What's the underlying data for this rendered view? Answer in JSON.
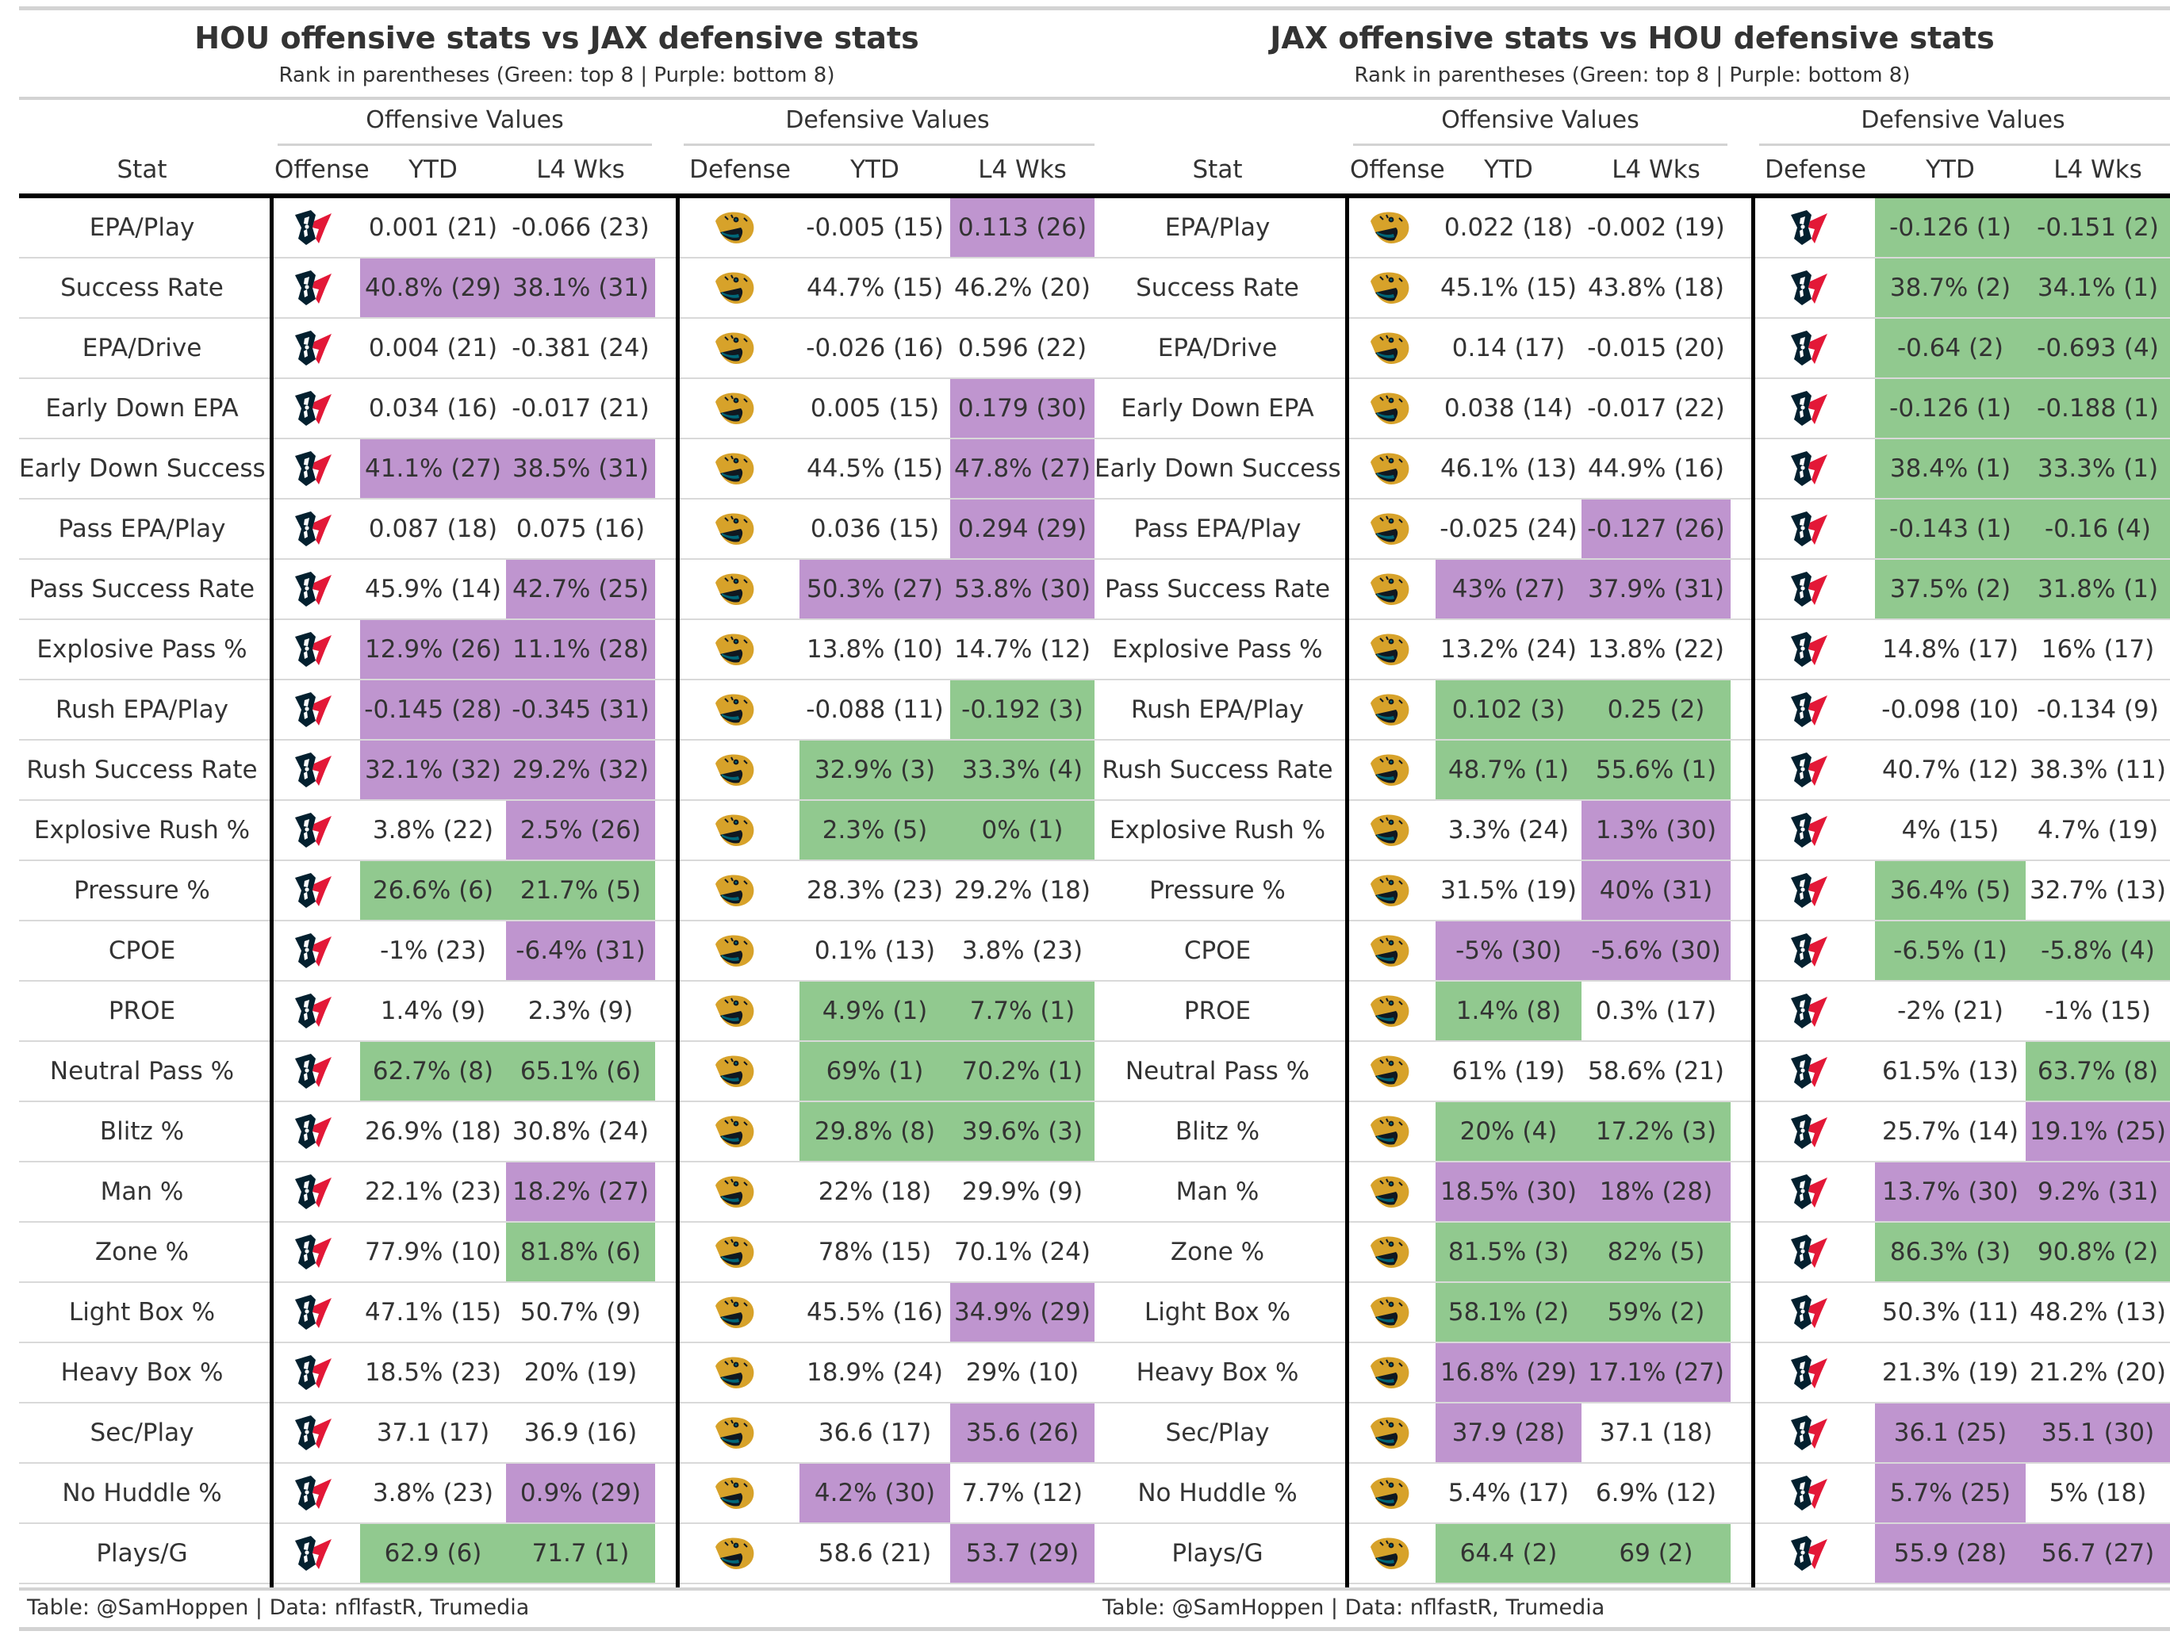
{
  "colors": {
    "green": "#91c98f",
    "purple": "#bf95cf"
  },
  "column_labels": {
    "stat": "Stat",
    "offense": "Offense",
    "defense": "Defense",
    "ytd": "YTD",
    "l4": "L4 Wks"
  },
  "spanners": {
    "offensive": "Offensive Values",
    "defensive": "Defensive Values"
  },
  "panels": [
    {
      "title": "HOU offensive stats vs JAX defensive stats",
      "subtitle": "Rank in parentheses (Green: top 8 | Purple: bottom 8)",
      "footer": "Table: @SamHoppen | Data: nflfastR, Trumedia",
      "offense_logo": "texans-logo-icon",
      "defense_logo": "jaguars-logo-icon",
      "rows": [
        {
          "stat": "EPA/Play",
          "off_ytd": "0.001 (21)",
          "off_l4": "-0.066 (23)",
          "def_ytd": "-0.005 (15)",
          "def_l4": "0.113 (26)",
          "c": [
            "",
            "",
            "",
            "p"
          ]
        },
        {
          "stat": "Success Rate",
          "off_ytd": "40.8% (29)",
          "off_l4": "38.1% (31)",
          "def_ytd": "44.7% (15)",
          "def_l4": "46.2% (20)",
          "c": [
            "p",
            "p",
            "",
            ""
          ]
        },
        {
          "stat": "EPA/Drive",
          "off_ytd": "0.004 (21)",
          "off_l4": "-0.381 (24)",
          "def_ytd": "-0.026 (16)",
          "def_l4": "0.596 (22)",
          "c": [
            "",
            "",
            "",
            ""
          ]
        },
        {
          "stat": "Early Down EPA",
          "off_ytd": "0.034 (16)",
          "off_l4": "-0.017 (21)",
          "def_ytd": "0.005 (15)",
          "def_l4": "0.179 (30)",
          "c": [
            "",
            "",
            "",
            "p"
          ]
        },
        {
          "stat": "Early Down Success",
          "off_ytd": "41.1% (27)",
          "off_l4": "38.5% (31)",
          "def_ytd": "44.5% (15)",
          "def_l4": "47.8% (27)",
          "c": [
            "p",
            "p",
            "",
            "p"
          ]
        },
        {
          "stat": "Pass EPA/Play",
          "off_ytd": "0.087 (18)",
          "off_l4": "0.075 (16)",
          "def_ytd": "0.036 (15)",
          "def_l4": "0.294 (29)",
          "c": [
            "",
            "",
            "",
            "p"
          ]
        },
        {
          "stat": "Pass Success Rate",
          "off_ytd": "45.9% (14)",
          "off_l4": "42.7% (25)",
          "def_ytd": "50.3% (27)",
          "def_l4": "53.8% (30)",
          "c": [
            "",
            "p",
            "p",
            "p"
          ]
        },
        {
          "stat": "Explosive Pass %",
          "off_ytd": "12.9% (26)",
          "off_l4": "11.1% (28)",
          "def_ytd": "13.8% (10)",
          "def_l4": "14.7% (12)",
          "c": [
            "p",
            "p",
            "",
            ""
          ]
        },
        {
          "stat": "Rush EPA/Play",
          "off_ytd": "-0.145 (28)",
          "off_l4": "-0.345 (31)",
          "def_ytd": "-0.088 (11)",
          "def_l4": "-0.192 (3)",
          "c": [
            "p",
            "p",
            "",
            "g"
          ]
        },
        {
          "stat": "Rush Success Rate",
          "off_ytd": "32.1% (32)",
          "off_l4": "29.2% (32)",
          "def_ytd": "32.9% (3)",
          "def_l4": "33.3% (4)",
          "c": [
            "p",
            "p",
            "g",
            "g"
          ]
        },
        {
          "stat": "Explosive Rush %",
          "off_ytd": "3.8% (22)",
          "off_l4": "2.5% (26)",
          "def_ytd": "2.3% (5)",
          "def_l4": "0% (1)",
          "c": [
            "",
            "p",
            "g",
            "g"
          ]
        },
        {
          "stat": "Pressure %",
          "off_ytd": "26.6% (6)",
          "off_l4": "21.7% (5)",
          "def_ytd": "28.3% (23)",
          "def_l4": "29.2% (18)",
          "c": [
            "g",
            "g",
            "",
            ""
          ]
        },
        {
          "stat": "CPOE",
          "off_ytd": "-1% (23)",
          "off_l4": "-6.4% (31)",
          "def_ytd": "0.1% (13)",
          "def_l4": "3.8% (23)",
          "c": [
            "",
            "p",
            "",
            ""
          ]
        },
        {
          "stat": "PROE",
          "off_ytd": "1.4% (9)",
          "off_l4": "2.3% (9)",
          "def_ytd": "4.9% (1)",
          "def_l4": "7.7% (1)",
          "c": [
            "",
            "",
            "g",
            "g"
          ]
        },
        {
          "stat": "Neutral Pass %",
          "off_ytd": "62.7% (8)",
          "off_l4": "65.1% (6)",
          "def_ytd": "69% (1)",
          "def_l4": "70.2% (1)",
          "c": [
            "g",
            "g",
            "g",
            "g"
          ]
        },
        {
          "stat": "Blitz %",
          "off_ytd": "26.9% (18)",
          "off_l4": "30.8% (24)",
          "def_ytd": "29.8% (8)",
          "def_l4": "39.6% (3)",
          "c": [
            "",
            "",
            "g",
            "g"
          ]
        },
        {
          "stat": "Man %",
          "off_ytd": "22.1% (23)",
          "off_l4": "18.2% (27)",
          "def_ytd": "22% (18)",
          "def_l4": "29.9% (9)",
          "c": [
            "",
            "p",
            "",
            ""
          ]
        },
        {
          "stat": "Zone %",
          "off_ytd": "77.9% (10)",
          "off_l4": "81.8% (6)",
          "def_ytd": "78% (15)",
          "def_l4": "70.1% (24)",
          "c": [
            "",
            "g",
            "",
            ""
          ]
        },
        {
          "stat": "Light Box %",
          "off_ytd": "47.1% (15)",
          "off_l4": "50.7% (9)",
          "def_ytd": "45.5% (16)",
          "def_l4": "34.9% (29)",
          "c": [
            "",
            "",
            "",
            "p"
          ]
        },
        {
          "stat": "Heavy Box %",
          "off_ytd": "18.5% (23)",
          "off_l4": "20% (19)",
          "def_ytd": "18.9% (24)",
          "def_l4": "29% (10)",
          "c": [
            "",
            "",
            "",
            ""
          ]
        },
        {
          "stat": "Sec/Play",
          "off_ytd": "37.1 (17)",
          "off_l4": "36.9 (16)",
          "def_ytd": "36.6 (17)",
          "def_l4": "35.6 (26)",
          "c": [
            "",
            "",
            "",
            "p"
          ]
        },
        {
          "stat": "No Huddle %",
          "off_ytd": "3.8% (23)",
          "off_l4": "0.9% (29)",
          "def_ytd": "4.2% (30)",
          "def_l4": "7.7% (12)",
          "c": [
            "",
            "p",
            "p",
            ""
          ]
        },
        {
          "stat": "Plays/G",
          "off_ytd": "62.9 (6)",
          "off_l4": "71.7 (1)",
          "def_ytd": "58.6 (21)",
          "def_l4": "53.7 (29)",
          "c": [
            "g",
            "g",
            "",
            "p"
          ]
        }
      ]
    },
    {
      "title": "JAX offensive stats vs HOU defensive stats",
      "subtitle": "Rank in parentheses (Green: top 8 | Purple: bottom 8)",
      "footer": "Table: @SamHoppen | Data: nflfastR, Trumedia",
      "offense_logo": "jaguars-logo-icon",
      "defense_logo": "texans-logo-icon",
      "rows": [
        {
          "stat": "EPA/Play",
          "off_ytd": "0.022 (18)",
          "off_l4": "-0.002 (19)",
          "def_ytd": "-0.126 (1)",
          "def_l4": "-0.151 (2)",
          "c": [
            "",
            "",
            "g",
            "g"
          ]
        },
        {
          "stat": "Success Rate",
          "off_ytd": "45.1% (15)",
          "off_l4": "43.8% (18)",
          "def_ytd": "38.7% (2)",
          "def_l4": "34.1% (1)",
          "c": [
            "",
            "",
            "g",
            "g"
          ]
        },
        {
          "stat": "EPA/Drive",
          "off_ytd": "0.14 (17)",
          "off_l4": "-0.015 (20)",
          "def_ytd": "-0.64 (2)",
          "def_l4": "-0.693 (4)",
          "c": [
            "",
            "",
            "g",
            "g"
          ]
        },
        {
          "stat": "Early Down EPA",
          "off_ytd": "0.038 (14)",
          "off_l4": "-0.017 (22)",
          "def_ytd": "-0.126 (1)",
          "def_l4": "-0.188 (1)",
          "c": [
            "",
            "",
            "g",
            "g"
          ]
        },
        {
          "stat": "Early Down Success",
          "off_ytd": "46.1% (13)",
          "off_l4": "44.9% (16)",
          "def_ytd": "38.4% (1)",
          "def_l4": "33.3% (1)",
          "c": [
            "",
            "",
            "g",
            "g"
          ]
        },
        {
          "stat": "Pass EPA/Play",
          "off_ytd": "-0.025 (24)",
          "off_l4": "-0.127 (26)",
          "def_ytd": "-0.143 (1)",
          "def_l4": "-0.16 (4)",
          "c": [
            "",
            "p",
            "g",
            "g"
          ]
        },
        {
          "stat": "Pass Success Rate",
          "off_ytd": "43% (27)",
          "off_l4": "37.9% (31)",
          "def_ytd": "37.5% (2)",
          "def_l4": "31.8% (1)",
          "c": [
            "p",
            "p",
            "g",
            "g"
          ]
        },
        {
          "stat": "Explosive Pass %",
          "off_ytd": "13.2% (24)",
          "off_l4": "13.8% (22)",
          "def_ytd": "14.8% (17)",
          "def_l4": "16% (17)",
          "c": [
            "",
            "",
            "",
            ""
          ]
        },
        {
          "stat": "Rush EPA/Play",
          "off_ytd": "0.102 (3)",
          "off_l4": "0.25 (2)",
          "def_ytd": "-0.098 (10)",
          "def_l4": "-0.134 (9)",
          "c": [
            "g",
            "g",
            "",
            ""
          ]
        },
        {
          "stat": "Rush Success Rate",
          "off_ytd": "48.7% (1)",
          "off_l4": "55.6% (1)",
          "def_ytd": "40.7% (12)",
          "def_l4": "38.3% (11)",
          "c": [
            "g",
            "g",
            "",
            ""
          ]
        },
        {
          "stat": "Explosive Rush %",
          "off_ytd": "3.3% (24)",
          "off_l4": "1.3% (30)",
          "def_ytd": "4% (15)",
          "def_l4": "4.7% (19)",
          "c": [
            "",
            "p",
            "",
            ""
          ]
        },
        {
          "stat": "Pressure %",
          "off_ytd": "31.5% (19)",
          "off_l4": "40% (31)",
          "def_ytd": "36.4% (5)",
          "def_l4": "32.7% (13)",
          "c": [
            "",
            "p",
            "g",
            ""
          ]
        },
        {
          "stat": "CPOE",
          "off_ytd": "-5% (30)",
          "off_l4": "-5.6% (30)",
          "def_ytd": "-6.5% (1)",
          "def_l4": "-5.8% (4)",
          "c": [
            "p",
            "p",
            "g",
            "g"
          ]
        },
        {
          "stat": "PROE",
          "off_ytd": "1.4% (8)",
          "off_l4": "0.3% (17)",
          "def_ytd": "-2% (21)",
          "def_l4": "-1% (15)",
          "c": [
            "g",
            "",
            "",
            ""
          ]
        },
        {
          "stat": "Neutral Pass %",
          "off_ytd": "61% (19)",
          "off_l4": "58.6% (21)",
          "def_ytd": "61.5% (13)",
          "def_l4": "63.7% (8)",
          "c": [
            "",
            "",
            "",
            "g"
          ]
        },
        {
          "stat": "Blitz %",
          "off_ytd": "20% (4)",
          "off_l4": "17.2% (3)",
          "def_ytd": "25.7% (14)",
          "def_l4": "19.1% (25)",
          "c": [
            "g",
            "g",
            "",
            "p"
          ]
        },
        {
          "stat": "Man %",
          "off_ytd": "18.5% (30)",
          "off_l4": "18% (28)",
          "def_ytd": "13.7% (30)",
          "def_l4": "9.2% (31)",
          "c": [
            "p",
            "p",
            "p",
            "p"
          ]
        },
        {
          "stat": "Zone %",
          "off_ytd": "81.5% (3)",
          "off_l4": "82% (5)",
          "def_ytd": "86.3% (3)",
          "def_l4": "90.8% (2)",
          "c": [
            "g",
            "g",
            "g",
            "g"
          ]
        },
        {
          "stat": "Light Box %",
          "off_ytd": "58.1% (2)",
          "off_l4": "59% (2)",
          "def_ytd": "50.3% (11)",
          "def_l4": "48.2% (13)",
          "c": [
            "g",
            "g",
            "",
            ""
          ]
        },
        {
          "stat": "Heavy Box %",
          "off_ytd": "16.8% (29)",
          "off_l4": "17.1% (27)",
          "def_ytd": "21.3% (19)",
          "def_l4": "21.2% (20)",
          "c": [
            "p",
            "p",
            "",
            ""
          ]
        },
        {
          "stat": "Sec/Play",
          "off_ytd": "37.9 (28)",
          "off_l4": "37.1 (18)",
          "def_ytd": "36.1 (25)",
          "def_l4": "35.1 (30)",
          "c": [
            "p",
            "",
            "p",
            "p"
          ]
        },
        {
          "stat": "No Huddle %",
          "off_ytd": "5.4% (17)",
          "off_l4": "6.9% (12)",
          "def_ytd": "5.7% (25)",
          "def_l4": "5% (18)",
          "c": [
            "",
            "",
            "p",
            ""
          ]
        },
        {
          "stat": "Plays/G",
          "off_ytd": "64.4 (2)",
          "off_l4": "69 (2)",
          "def_ytd": "55.9 (28)",
          "def_l4": "56.7 (27)",
          "c": [
            "g",
            "g",
            "p",
            "p"
          ]
        }
      ]
    }
  ]
}
